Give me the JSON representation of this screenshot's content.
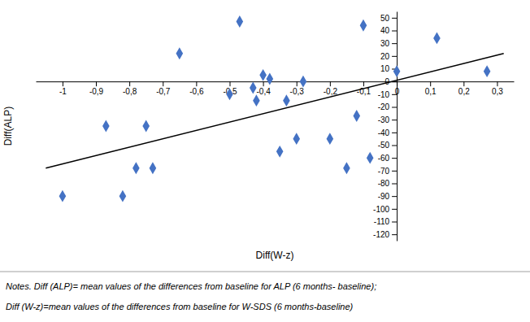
{
  "chart_data": {
    "type": "scatter",
    "xlabel": "Diff(W-z)",
    "ylabel": "Diff(ALP)",
    "annotations": [
      "Notes. Diff (ALP)= mean values of the differences from baseline for ALP (6 months- baseline);",
      "Diff (W-z)=mean values of the differences from baseline for W-SDS (6 months-baseline)"
    ],
    "series": [
      {
        "type": "scatter",
        "color": "#4472C4",
        "marker": "diamond",
        "x": [
          -1.0,
          -0.87,
          -0.82,
          -0.78,
          -0.75,
          -0.73,
          -0.65,
          -0.5,
          -0.47,
          -0.43,
          -0.42,
          -0.4,
          -0.38,
          -0.35,
          -0.33,
          -0.3,
          -0.28,
          -0.2,
          -0.15,
          -0.12,
          -0.1,
          -0.08,
          0.0,
          0.12,
          0.27
        ],
        "values": [
          -90,
          -35,
          -90,
          -68,
          -35,
          -68,
          22,
          -10,
          47,
          -5,
          -15,
          5,
          2,
          -55,
          -15,
          -45,
          0,
          -45,
          -68,
          -27,
          44,
          -60,
          8,
          34,
          8
        ]
      },
      {
        "type": "line",
        "color": "black",
        "x": [
          -1.05,
          0.32
        ],
        "values": [
          -68,
          22
        ]
      }
    ],
    "xlim": [
      -1.08,
      0.35
    ],
    "ylim": [
      -125,
      55
    ],
    "xticks": [
      -1,
      {
        "value": -0.9,
        "label": "-0,9"
      },
      {
        "value": -0.8,
        "label": "-0,8"
      },
      {
        "value": -0.7,
        "label": "-0,7"
      },
      {
        "value": -0.6,
        "label": "-0,6"
      },
      {
        "value": -0.5,
        "label": "-0,5"
      },
      {
        "value": -0.4,
        "label": "-0,4"
      },
      {
        "value": -0.3,
        "label": "-0,3"
      },
      {
        "value": -0.2,
        "label": "-0,2"
      },
      {
        "value": -0.1,
        "label": "-0,1"
      },
      0,
      {
        "value": 0.1,
        "label": "0,1"
      },
      {
        "value": 0.2,
        "label": "0,2"
      },
      {
        "value": 0.3,
        "label": "0,3"
      }
    ],
    "yticks": [
      -120,
      -110,
      -100,
      -90,
      -80,
      -70,
      -60,
      -50,
      -40,
      -30,
      -20,
      -10,
      0,
      10,
      20,
      30,
      40,
      50
    ],
    "grid": false
  }
}
